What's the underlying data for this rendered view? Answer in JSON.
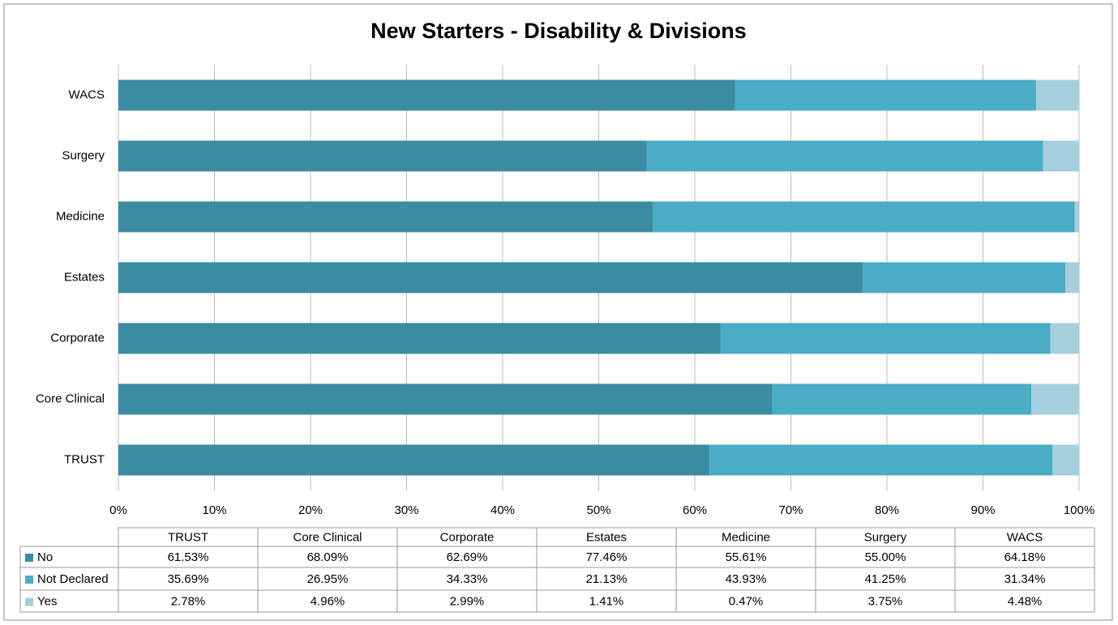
{
  "chart_data": {
    "type": "stacked-bar-horizontal",
    "title": "New Starters - Disability & Divisions",
    "categories": [
      "TRUST",
      "Core Clinical",
      "Corporate",
      "Estates",
      "Medicine",
      "Surgery",
      "WACS"
    ],
    "series": [
      {
        "name": "No",
        "color": "#3b8ba3",
        "values": [
          61.53,
          68.09,
          62.69,
          77.46,
          55.61,
          55.0,
          64.18
        ],
        "value_labels": [
          "61.53%",
          "68.09%",
          "62.69%",
          "77.46%",
          "55.61%",
          "55.00%",
          "64.18%"
        ]
      },
      {
        "name": "Not Declared",
        "color": "#4bacc6",
        "values": [
          35.69,
          26.95,
          34.33,
          21.13,
          43.93,
          41.25,
          31.34
        ],
        "value_labels": [
          "35.69%",
          "26.95%",
          "34.33%",
          "21.13%",
          "43.93%",
          "41.25%",
          "31.34%"
        ]
      },
      {
        "name": "Yes",
        "color": "#a5cfdc",
        "values": [
          2.78,
          4.96,
          2.99,
          1.41,
          0.47,
          3.75,
          4.48
        ],
        "value_labels": [
          "2.78%",
          "4.96%",
          "2.99%",
          "1.41%",
          "0.47%",
          "3.75%",
          "4.48%"
        ]
      }
    ],
    "xlim": [
      0,
      100
    ],
    "xticks": [
      {
        "value": 0,
        "label": "0%"
      },
      {
        "value": 10,
        "label": "10%"
      },
      {
        "value": 20,
        "label": "20%"
      },
      {
        "value": 30,
        "label": "30%"
      },
      {
        "value": 40,
        "label": "40%"
      },
      {
        "value": 50,
        "label": "50%"
      },
      {
        "value": 60,
        "label": "60%"
      },
      {
        "value": 70,
        "label": "70%"
      },
      {
        "value": 80,
        "label": "80%"
      },
      {
        "value": 90,
        "label": "90%"
      },
      {
        "value": 100,
        "label": "100%"
      }
    ],
    "grid": true
  }
}
